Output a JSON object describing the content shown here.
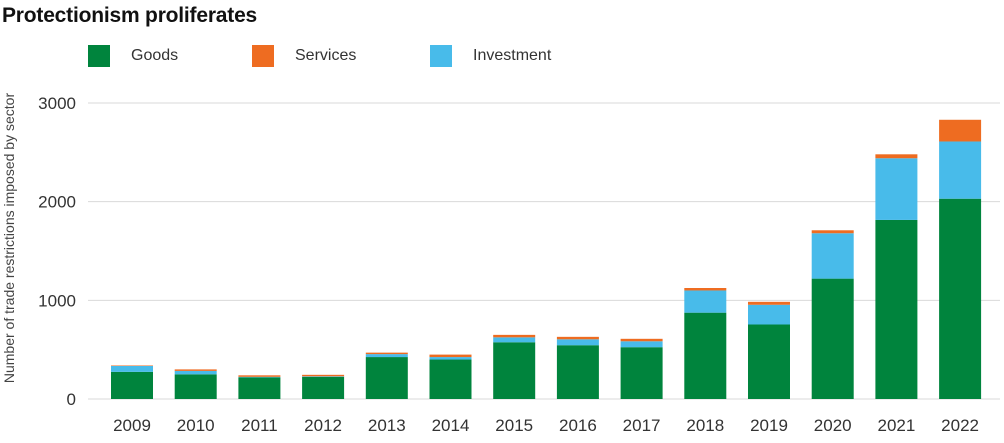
{
  "chart_data": {
    "type": "bar",
    "stacked": true,
    "title": "Protectionism proliferates",
    "xlabel": "",
    "ylabel": "Number of trade restrictions imposed by sector",
    "ylim": [
      0,
      3000
    ],
    "yticks": [
      0,
      1000,
      2000,
      3000
    ],
    "grid": true,
    "legend_position": "top-left",
    "categories": [
      "2009",
      "2010",
      "2011",
      "2012",
      "2013",
      "2014",
      "2015",
      "2016",
      "2017",
      "2018",
      "2019",
      "2020",
      "2021",
      "2022"
    ],
    "series": [
      {
        "name": "Goods",
        "color": "#00843d",
        "values": [
          275,
          250,
          220,
          225,
          425,
          400,
          575,
          545,
          525,
          875,
          755,
          1220,
          1815,
          2030
        ]
      },
      {
        "name": "Services",
        "color": "#ee6c21",
        "values": [
          5,
          15,
          15,
          15,
          15,
          25,
          25,
          25,
          25,
          25,
          30,
          30,
          40,
          220
        ]
      },
      {
        "name": "Investment",
        "color": "#48bbea",
        "values": [
          60,
          35,
          5,
          5,
          30,
          25,
          50,
          60,
          60,
          225,
          200,
          460,
          625,
          580
        ]
      }
    ],
    "stack_order": [
      "Goods",
      "Investment",
      "Services"
    ]
  }
}
